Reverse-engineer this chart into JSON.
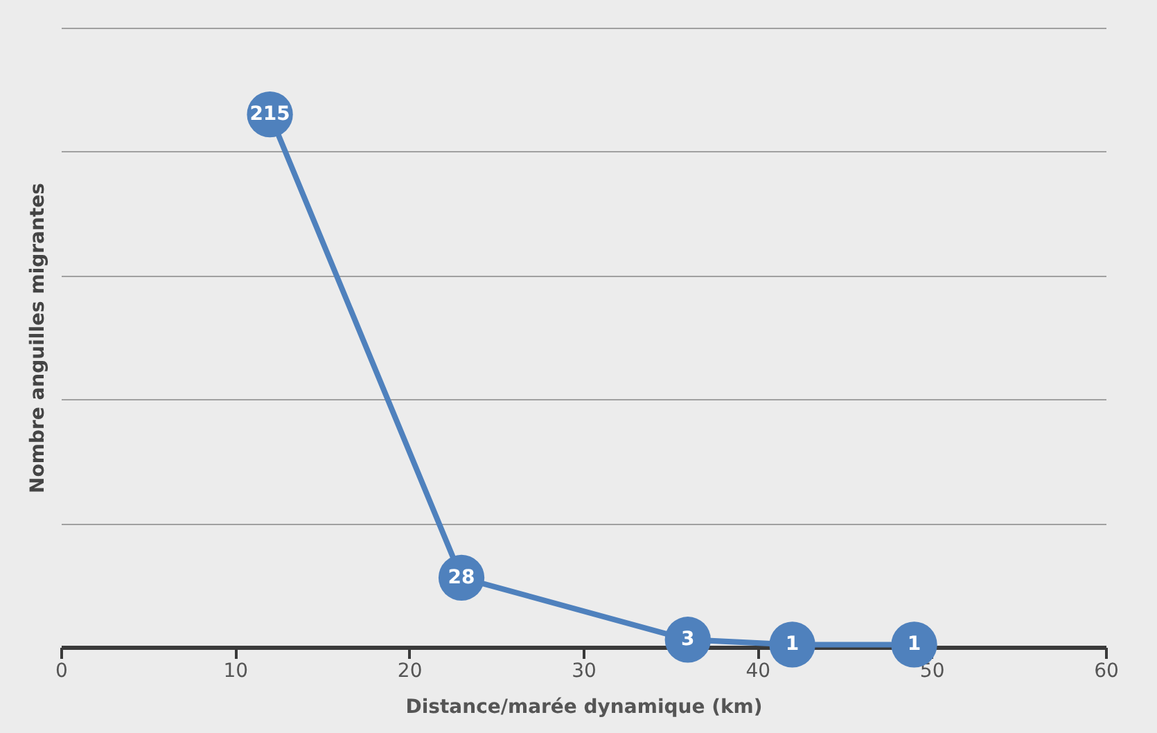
{
  "chart_data": {
    "type": "line",
    "xlabel": "Distance/marée dynamique (km)",
    "ylabel": "Nombre anguilles migrantes",
    "x": [
      12,
      23,
      36,
      42,
      49
    ],
    "series": [
      {
        "color": "#4f81bd",
        "values": [
          215,
          28,
          3,
          1,
          1
        ]
      }
    ],
    "xlim": [
      0,
      60
    ],
    "xticks": [
      0,
      10,
      20,
      30,
      40,
      50,
      60
    ],
    "ylim": [
      0,
      250
    ],
    "yticks": [
      {
        "value": 0,
        "label": null
      },
      {
        "value": 50,
        "label": null
      },
      {
        "value": 100,
        "label": null
      },
      {
        "value": 150,
        "label": null
      },
      {
        "value": 200,
        "label": null
      },
      {
        "value": 250,
        "label": null
      }
    ],
    "tick_labels": "x",
    "grid": "y",
    "marker": "circle",
    "line_style": "solid",
    "data_labels": true
  }
}
